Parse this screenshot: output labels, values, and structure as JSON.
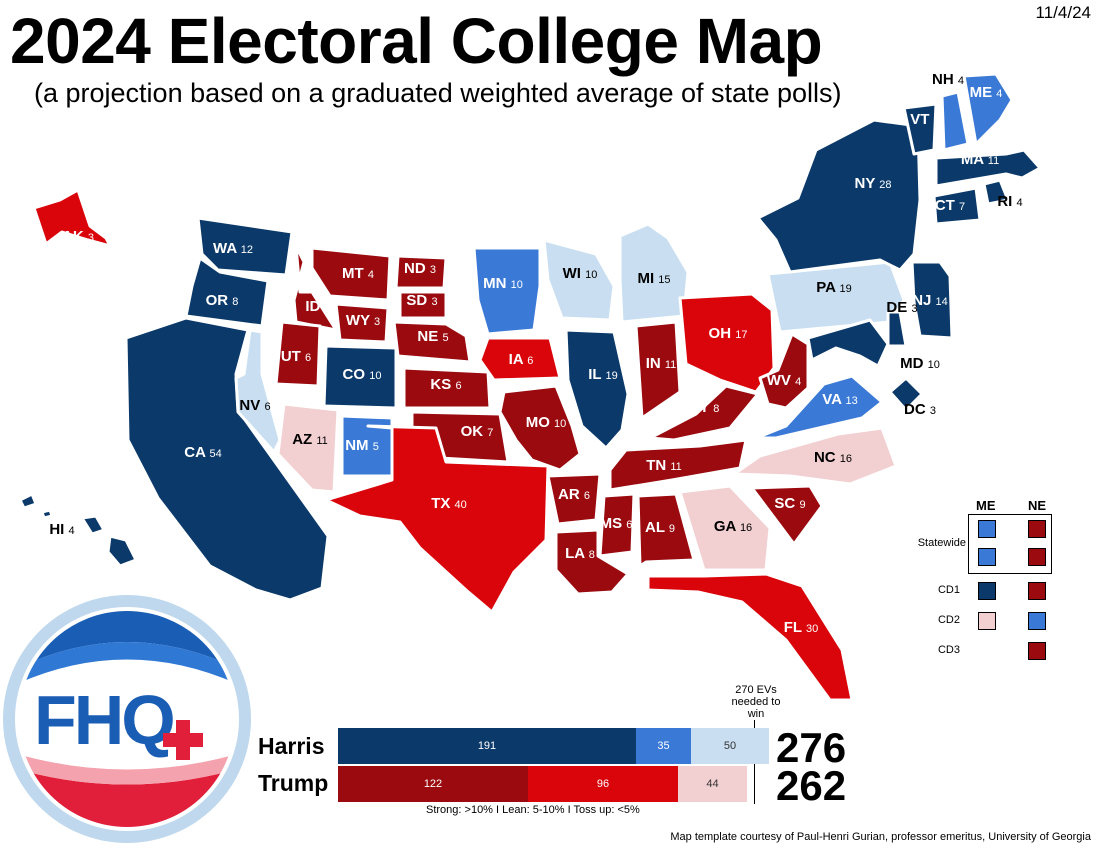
{
  "header": {
    "title": "2024 Electoral College Map",
    "subtitle": "(a projection based on a graduated weighted average of state polls)",
    "date": "11/4/24"
  },
  "colors": {
    "d_strong": "#0b3a6a",
    "d_lean": "#3a79d6",
    "d_tossup": "#c9dff1",
    "r_strong": "#9a0a0f",
    "r_lean": "#d9050b",
    "r_tossup": "#f2cfd1"
  },
  "states": [
    {
      "abbr": "WA",
      "ev": "12",
      "rating": "d_strong"
    },
    {
      "abbr": "OR",
      "ev": "8",
      "rating": "d_strong"
    },
    {
      "abbr": "CA",
      "ev": "54",
      "rating": "d_strong"
    },
    {
      "abbr": "NV",
      "ev": "6",
      "rating": "d_tossup"
    },
    {
      "abbr": "ID",
      "ev": "4",
      "rating": "r_strong"
    },
    {
      "abbr": "MT",
      "ev": "4",
      "rating": "r_strong"
    },
    {
      "abbr": "WY",
      "ev": "3",
      "rating": "r_strong"
    },
    {
      "abbr": "UT",
      "ev": "6",
      "rating": "r_strong"
    },
    {
      "abbr": "CO",
      "ev": "10",
      "rating": "d_strong"
    },
    {
      "abbr": "AZ",
      "ev": "11",
      "rating": "r_tossup"
    },
    {
      "abbr": "NM",
      "ev": "5",
      "rating": "d_lean"
    },
    {
      "abbr": "ND",
      "ev": "3",
      "rating": "r_strong"
    },
    {
      "abbr": "SD",
      "ev": "3",
      "rating": "r_strong"
    },
    {
      "abbr": "NE",
      "ev": "5",
      "rating": "r_strong"
    },
    {
      "abbr": "KS",
      "ev": "6",
      "rating": "r_strong"
    },
    {
      "abbr": "OK",
      "ev": "7",
      "rating": "r_strong"
    },
    {
      "abbr": "TX",
      "ev": "40",
      "rating": "r_lean"
    },
    {
      "abbr": "MN",
      "ev": "10",
      "rating": "d_lean"
    },
    {
      "abbr": "IA",
      "ev": "6",
      "rating": "r_lean"
    },
    {
      "abbr": "MO",
      "ev": "10",
      "rating": "r_strong"
    },
    {
      "abbr": "AR",
      "ev": "6",
      "rating": "r_strong"
    },
    {
      "abbr": "LA",
      "ev": "8",
      "rating": "r_strong"
    },
    {
      "abbr": "WI",
      "ev": "10",
      "rating": "d_tossup"
    },
    {
      "abbr": "IL",
      "ev": "19",
      "rating": "d_strong"
    },
    {
      "abbr": "MI",
      "ev": "15",
      "rating": "d_tossup"
    },
    {
      "abbr": "IN",
      "ev": "11",
      "rating": "r_strong"
    },
    {
      "abbr": "OH",
      "ev": "17",
      "rating": "r_lean"
    },
    {
      "abbr": "KY",
      "ev": "8",
      "rating": "r_strong"
    },
    {
      "abbr": "TN",
      "ev": "11",
      "rating": "r_strong"
    },
    {
      "abbr": "MS",
      "ev": "6",
      "rating": "r_strong"
    },
    {
      "abbr": "AL",
      "ev": "9",
      "rating": "r_strong"
    },
    {
      "abbr": "GA",
      "ev": "16",
      "rating": "r_tossup"
    },
    {
      "abbr": "FL",
      "ev": "30",
      "rating": "r_lean"
    },
    {
      "abbr": "SC",
      "ev": "9",
      "rating": "r_strong"
    },
    {
      "abbr": "NC",
      "ev": "16",
      "rating": "r_tossup"
    },
    {
      "abbr": "VA",
      "ev": "13",
      "rating": "d_lean"
    },
    {
      "abbr": "WV",
      "ev": "4",
      "rating": "r_strong"
    },
    {
      "abbr": "PA",
      "ev": "19",
      "rating": "d_tossup"
    },
    {
      "abbr": "NY",
      "ev": "28",
      "rating": "d_strong"
    },
    {
      "abbr": "VT",
      "ev": "3",
      "rating": "d_strong"
    },
    {
      "abbr": "NH",
      "ev": "4",
      "rating": "d_lean"
    },
    {
      "abbr": "ME",
      "ev": "4",
      "rating": "d_lean"
    },
    {
      "abbr": "MA",
      "ev": "11",
      "rating": "d_strong"
    },
    {
      "abbr": "CT",
      "ev": "7",
      "rating": "d_strong"
    },
    {
      "abbr": "RI",
      "ev": "4",
      "rating": "d_strong"
    },
    {
      "abbr": "NJ",
      "ev": "14",
      "rating": "d_strong"
    },
    {
      "abbr": "DE",
      "ev": "3",
      "rating": "d_strong"
    },
    {
      "abbr": "MD",
      "ev": "10",
      "rating": "d_strong"
    },
    {
      "abbr": "DC",
      "ev": "3",
      "rating": "d_strong"
    },
    {
      "abbr": "AK",
      "ev": "3",
      "rating": "r_lean"
    },
    {
      "abbr": "HI",
      "ev": "4",
      "rating": "d_strong"
    }
  ],
  "split_legend": {
    "col_me": "ME",
    "col_ne": "NE",
    "rows": [
      {
        "label": "Statewide",
        "me": "d_lean",
        "ne": "r_strong"
      },
      {
        "label": "",
        "me": "d_lean",
        "ne": "r_strong"
      },
      {
        "label": "CD1",
        "me": "d_strong",
        "ne": "r_strong"
      },
      {
        "label": "CD2",
        "me": "r_tossup",
        "ne": "d_lean"
      },
      {
        "label": "CD3",
        "me": "",
        "ne": "r_strong"
      }
    ]
  },
  "tally": {
    "needed_text": "270 EVs needed to win",
    "harris": {
      "name": "Harris",
      "total": "276",
      "strong": 191,
      "lean": 35,
      "tossup": 50
    },
    "trump": {
      "name": "Trump",
      "total": "262",
      "strong": 122,
      "lean": 96,
      "tossup": 44
    },
    "key": "Strong: >10%  I  Lean: 5-10%  I  Toss up: <5%"
  },
  "logo": {
    "text": "FHQ"
  },
  "credit": "Map template courtesy of Paul-Henri Gurian, professor emeritus, University of Georgia"
}
